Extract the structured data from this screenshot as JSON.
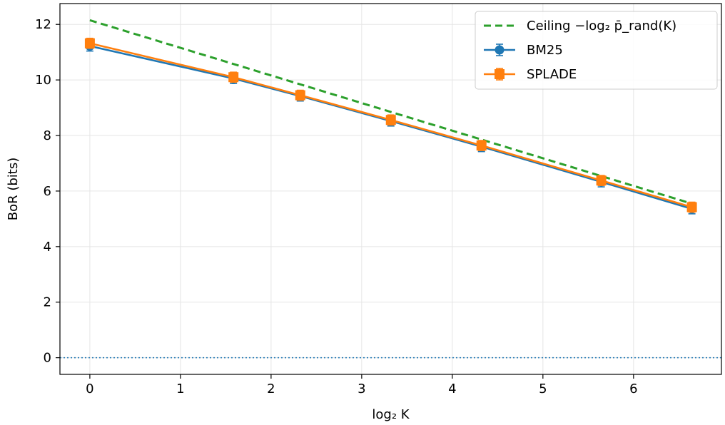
{
  "chart_data": {
    "type": "line",
    "title": "",
    "xlabel": "log₂ K",
    "ylabel": "BoR (bits)",
    "xlim": [
      -0.33,
      6.97
    ],
    "ylim": [
      -0.6,
      12.75
    ],
    "xticks": [
      0,
      1,
      2,
      3,
      4,
      5,
      6
    ],
    "yticks": [
      0,
      2,
      4,
      6,
      8,
      10,
      12
    ],
    "grid": true,
    "legend_position": "top-right",
    "reference_line": {
      "y": 0,
      "style": "dotted",
      "color": "#1f77b4"
    },
    "series": [
      {
        "name": "Ceiling −log₂ p̄_rand(K)",
        "style": "dashed",
        "color": "#2ca02c",
        "marker": "none",
        "x": [
          0,
          6.64
        ],
        "y": [
          12.15,
          5.55
        ]
      },
      {
        "name": "BM25",
        "style": "solid",
        "color": "#1f77b4",
        "marker": "circle",
        "errorbars": true,
        "x": [
          0,
          1.585,
          2.322,
          3.322,
          4.322,
          5.644,
          6.644
        ],
        "y": [
          11.22,
          10.05,
          9.42,
          8.52,
          7.6,
          6.33,
          5.36
        ]
      },
      {
        "name": "SPLADE",
        "style": "solid",
        "color": "#ff7f0e",
        "marker": "square",
        "errorbars": true,
        "x": [
          0,
          1.585,
          2.322,
          3.322,
          4.322,
          5.644,
          6.644
        ],
        "y": [
          11.32,
          10.1,
          9.45,
          8.56,
          7.64,
          6.38,
          5.42
        ]
      }
    ]
  }
}
